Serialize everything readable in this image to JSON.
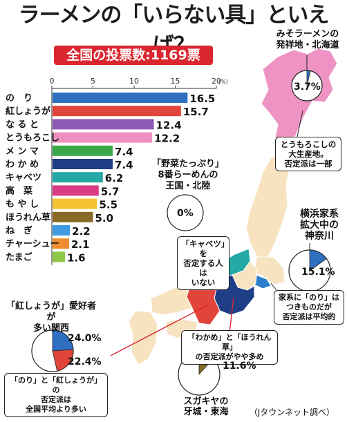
{
  "title": "ラーメンの「いらない具」といえば？",
  "banner": "全国の投票数:1169票",
  "chart_data": {
    "type": "bar",
    "orientation": "horizontal",
    "title": "全国の投票数:1169票",
    "unit": "(%)",
    "xlim": [
      0,
      20
    ],
    "ticks": [
      0,
      5,
      10,
      15,
      20
    ],
    "categories": [
      "の　り",
      "紅しょうが",
      "な る と",
      "とうもろこし",
      "メ ン マ",
      "わ か め",
      "キャベツ",
      "高　菜",
      "も や し",
      "ほうれん草",
      "ね　ぎ",
      "チャーシュー",
      "たまご"
    ],
    "values": [
      16.5,
      15.7,
      12.4,
      12.2,
      7.4,
      7.4,
      6.2,
      5.7,
      5.5,
      5.0,
      2.2,
      2.1,
      1.6
    ],
    "value_labels": [
      "16.5",
      "15.7",
      "12.4",
      "12.2",
      "7.4",
      "7.4",
      "6.2",
      "5.7",
      "5.5",
      "5.0",
      "2.2",
      "2.1",
      "1.6"
    ],
    "colors": [
      "#2f6fc0",
      "#e0443b",
      "#8e5ab3",
      "#ef8fbf",
      "#3aa84a",
      "#1e3e86",
      "#24a9a6",
      "#d93b86",
      "#f4c431",
      "#8a6a26",
      "#3f9ce0",
      "#ee8c2e",
      "#8fc748"
    ]
  },
  "regions": {
    "hokkaido": {
      "label": "みそラーメンの\n発祥地・北海道",
      "pct": "3.7%",
      "share": 3.7,
      "color": "#2f6fc0",
      "note": "とうもろこしの\n大生産地。\n否定派は一部"
    },
    "hokuriku": {
      "label": "「野菜たっぷり」\n8番らーめんの\n王国・北陸",
      "pct": "0%",
      "share": 0,
      "note": "「キャベツ」を\n否定する人は\nいない"
    },
    "kanagawa": {
      "label": "横浜家系\n拡大中の\n神奈川",
      "pct": "15.1%",
      "share": 15.1,
      "color": "#2f6fc0",
      "note": "家系に「のり」は\nつきものだが\n否定派は平均的"
    },
    "kansai": {
      "label": "「紅しょうが」愛好者が\n多い関西",
      "pct_nori": "24.0%",
      "pct_beni": "22.4%",
      "share_nori": 24.0,
      "share_beni": 22.4,
      "note": "「のり」と「紅しょうが」の\n否定派は\n全国平均より多い"
    },
    "tokai": {
      "label": "スガキヤの\n牙城・東海",
      "pct": "11.6%",
      "share": 11.6,
      "color": "#8a6a26",
      "note": "「わかめ」と「ほうれん草」\nの否定派がやや多め"
    }
  },
  "source": "（Jタウンネット調べ）"
}
